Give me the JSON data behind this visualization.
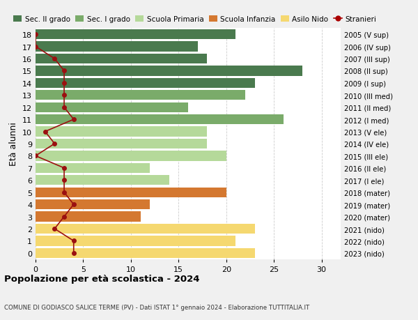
{
  "ages": [
    18,
    17,
    16,
    15,
    14,
    13,
    12,
    11,
    10,
    9,
    8,
    7,
    6,
    5,
    4,
    3,
    2,
    1,
    0
  ],
  "right_labels": [
    "2005 (V sup)",
    "2006 (IV sup)",
    "2007 (III sup)",
    "2008 (II sup)",
    "2009 (I sup)",
    "2010 (III med)",
    "2011 (II med)",
    "2012 (I med)",
    "2013 (V ele)",
    "2014 (IV ele)",
    "2015 (III ele)",
    "2016 (II ele)",
    "2017 (I ele)",
    "2018 (mater)",
    "2019 (mater)",
    "2020 (mater)",
    "2021 (nido)",
    "2022 (nido)",
    "2023 (nido)"
  ],
  "bar_values": [
    21,
    17,
    18,
    28,
    23,
    22,
    16,
    26,
    18,
    18,
    20,
    12,
    14,
    20,
    12,
    11,
    23,
    21,
    23
  ],
  "bar_colors": [
    "#4a7a4e",
    "#4a7a4e",
    "#4a7a4e",
    "#4a7a4e",
    "#4a7a4e",
    "#7aab6a",
    "#7aab6a",
    "#7aab6a",
    "#b5d99a",
    "#b5d99a",
    "#b5d99a",
    "#b5d99a",
    "#b5d99a",
    "#d47830",
    "#d47830",
    "#d47830",
    "#f5d870",
    "#f5d870",
    "#f5d870"
  ],
  "stranieri_values": [
    0,
    0,
    2,
    3,
    3,
    3,
    3,
    4,
    1,
    2,
    0,
    3,
    3,
    3,
    4,
    3,
    2,
    4,
    4
  ],
  "legend_labels": [
    "Sec. II grado",
    "Sec. I grado",
    "Scuola Primaria",
    "Scuola Infanzia",
    "Asilo Nido",
    "Stranieri"
  ],
  "legend_colors": [
    "#4a7a4e",
    "#7aab6a",
    "#b5d99a",
    "#d47830",
    "#f5d870",
    "#aa0000"
  ],
  "title": "Popolazione per età scolastica - 2024",
  "subtitle": "COMUNE DI GODIASCO SALICE TERME (PV) - Dati ISTAT 1° gennaio 2024 - Elaborazione TUTTITALIA.IT",
  "ylabel_left": "Età alunni",
  "xlim": [
    0,
    32
  ],
  "xticks": [
    0,
    5,
    10,
    15,
    20,
    25,
    30
  ],
  "bg_color": "#f0f0f0",
  "plot_bg_color": "#ffffff",
  "grid_color": "#cccccc"
}
